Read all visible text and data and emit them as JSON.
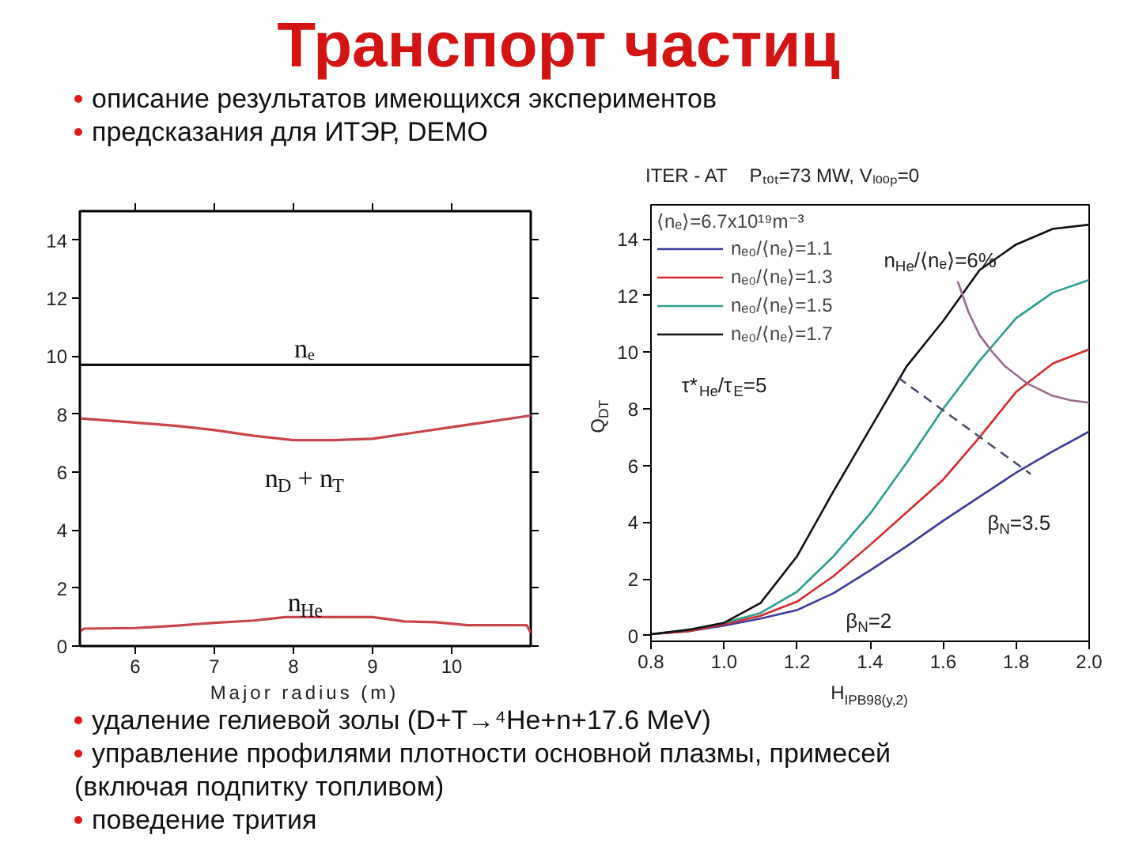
{
  "chart_data": [
    {
      "type": "other",
      "title": "Транспорт частиц",
      "annotations": [
        "описание результатов имеющихся экспериментов",
        "предсказания для ИТЭР, DEMO"
      ]
    },
    {
      "type": "line",
      "xlabel": "Major radius (m)",
      "xlim": [
        5.3,
        11.0
      ],
      "xticks": [
        6,
        7,
        8,
        9,
        10
      ],
      "ylim": [
        0,
        15
      ],
      "yticks": [
        0,
        2,
        4,
        6,
        8,
        10,
        12,
        14
      ],
      "series": [
        {
          "name": "nₑ",
          "color": "#111111",
          "x": [
            5.3,
            11.0
          ],
          "values": [
            9.7,
            9.7
          ]
        },
        {
          "name": "n$_{D}$ + n$_{T}$",
          "color": "#c8464b",
          "x": [
            5.3,
            5.8,
            6.5,
            7.0,
            7.5,
            8.0,
            8.5,
            9.0,
            9.5,
            10.0,
            10.5,
            11.0
          ],
          "values": [
            7.85,
            7.75,
            7.6,
            7.45,
            7.25,
            7.1,
            7.1,
            7.15,
            7.35,
            7.55,
            7.75,
            7.95
          ]
        },
        {
          "name": "n$_{He}$",
          "color": "#c8464b",
          "x": [
            5.3,
            5.35,
            6.0,
            6.5,
            7.0,
            7.5,
            7.9,
            8.5,
            9.0,
            9.4,
            9.8,
            10.2,
            10.6,
            10.95,
            11.0
          ],
          "values": [
            0.5,
            0.6,
            0.62,
            0.7,
            0.8,
            0.88,
            1.0,
            1.0,
            1.0,
            0.85,
            0.82,
            0.72,
            0.72,
            0.72,
            0.45
          ]
        }
      ]
    },
    {
      "type": "line",
      "title": "ITER - AT",
      "subtitle": "Pₜₒₜ=73 MW, Vₗₒₒₚ=0",
      "xlabel": "H$_{IPB98(y,2)}$",
      "ylabel": "Q$_{DT}$",
      "legend": "top left",
      "legend_title": "⟨nₑ⟩=6.7x10¹⁹m⁻³",
      "xlim": [
        0.8,
        2.0
      ],
      "xticks": [
        0.8,
        {
          "value": 1,
          "label": "1.0"
        },
        1.2,
        1.4,
        1.6,
        1.8,
        {
          "value": 2,
          "label": "2.0"
        }
      ],
      "ylim": [
        -0.2,
        15.2
      ],
      "yticks": [
        0,
        2,
        4,
        6,
        8,
        10,
        12,
        14
      ],
      "series": [
        {
          "name": "nₑ₀/⟨nₑ⟩=1.1",
          "color": "#3b3b9e",
          "x": [
            0.8,
            0.9,
            1.0,
            1.1,
            1.2,
            1.3,
            1.4,
            1.5,
            1.6,
            1.7,
            1.8,
            1.9,
            2.0
          ],
          "values": [
            0.05,
            0.15,
            0.35,
            0.6,
            0.9,
            1.5,
            2.3,
            3.15,
            4.05,
            4.9,
            5.75,
            6.5,
            7.2
          ]
        },
        {
          "name": "nₑ₀/⟨nₑ⟩=1.3",
          "color": "#d42a2a",
          "x": [
            0.8,
            0.9,
            1.0,
            1.1,
            1.2,
            1.3,
            1.4,
            1.5,
            1.6,
            1.7,
            1.8,
            1.9,
            2.0
          ],
          "values": [
            0.05,
            0.15,
            0.4,
            0.7,
            1.2,
            2.1,
            3.2,
            4.35,
            5.5,
            7.0,
            8.6,
            9.6,
            10.1
          ]
        },
        {
          "name": "nₑ₀/⟨nₑ⟩=1.5",
          "color": "#2a9d8f",
          "x": [
            0.8,
            0.9,
            1.0,
            1.1,
            1.2,
            1.3,
            1.4,
            1.5,
            1.6,
            1.7,
            1.8,
            1.9,
            2.0
          ],
          "values": [
            0.05,
            0.2,
            0.45,
            0.8,
            1.55,
            2.8,
            4.3,
            6.1,
            8.0,
            9.7,
            11.2,
            12.1,
            12.55
          ]
        },
        {
          "name": "nₑ₀/⟨nₑ⟩=1.7",
          "color": "#111111",
          "x": [
            0.8,
            0.9,
            1.0,
            1.1,
            1.2,
            1.3,
            1.4,
            1.5,
            1.6,
            1.7,
            1.8,
            1.9,
            2.0
          ],
          "values": [
            0.05,
            0.2,
            0.45,
            1.15,
            2.8,
            5.1,
            7.3,
            9.5,
            11.1,
            12.9,
            13.8,
            14.35,
            14.5
          ]
        },
        {
          "color": "#9b6b8e",
          "x": [
            1.64,
            1.67,
            1.7,
            1.735,
            1.77,
            1.83,
            1.9,
            1.95,
            2.0
          ],
          "values": [
            12.5,
            11.4,
            10.6,
            10.0,
            9.5,
            8.9,
            8.46,
            8.3,
            8.22
          ]
        },
        {
          "color": "#4b4b6b",
          "line_style": "dashed",
          "x": [
            1.477,
            1.84
          ],
          "values": [
            9.1,
            5.7
          ]
        }
      ],
      "annotations": [
        "n$_{He}$/⟨nₑ⟩=6%",
        "β$_{N}$=3.5",
        "β$_{N}$=2",
        "τ*$_{He}$/τ$_{E}$=5"
      ]
    },
    {
      "type": "other",
      "annotations": [
        "удаление гелиевой золы (D+T→⁴He+n+17.6 MeV)",
        "управление профилями плотности основной плазмы, примесей (включая подпитку топливом)",
        "поведение трития"
      ]
    }
  ]
}
